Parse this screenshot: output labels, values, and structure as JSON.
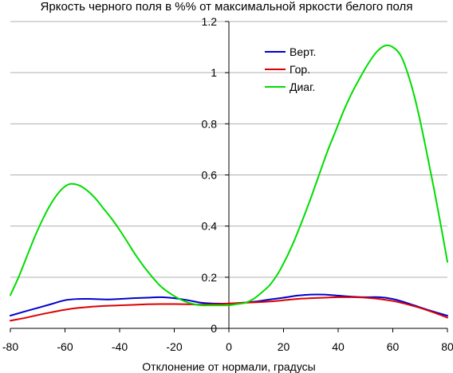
{
  "chart_data": {
    "type": "line",
    "title": "Яркость черного поля в %% от максимальной яркости белого поля",
    "xlabel": "Отклонение от нормали, градусы",
    "ylabel": "",
    "xlim": [
      -80,
      80
    ],
    "ylim": [
      0,
      1.2
    ],
    "x_ticks": [
      "-80",
      "-60",
      "-40",
      "-20",
      "0",
      "20",
      "40",
      "60",
      "80"
    ],
    "y_ticks": [
      "0",
      "0.2",
      "0.4",
      "0.6",
      "0.8",
      "1",
      "1.2"
    ],
    "grid": "horizontal",
    "legend_position": "top-right",
    "series": [
      {
        "name": "Верт.",
        "color": "#0000cc",
        "x": [
          -80,
          -75,
          -70,
          -65,
          -60,
          -55,
          -50,
          -45,
          -40,
          -35,
          -30,
          -25,
          -20,
          -15,
          -10,
          -5,
          0,
          5,
          10,
          15,
          20,
          25,
          30,
          35,
          40,
          45,
          50,
          55,
          60,
          65,
          70,
          75,
          80
        ],
        "y": [
          0.05,
          0.065,
          0.08,
          0.095,
          0.11,
          0.115,
          0.115,
          0.113,
          0.115,
          0.118,
          0.12,
          0.122,
          0.118,
          0.11,
          0.1,
          0.097,
          0.097,
          0.1,
          0.105,
          0.113,
          0.12,
          0.128,
          0.132,
          0.132,
          0.128,
          0.124,
          0.122,
          0.122,
          0.115,
          0.1,
          0.082,
          0.065,
          0.05
        ]
      },
      {
        "name": "Гор.",
        "color": "#dd0000",
        "x": [
          -80,
          -75,
          -70,
          -65,
          -60,
          -55,
          -50,
          -45,
          -40,
          -35,
          -30,
          -25,
          -20,
          -15,
          -10,
          -5,
          0,
          5,
          10,
          15,
          20,
          25,
          30,
          35,
          40,
          45,
          50,
          55,
          60,
          65,
          70,
          75,
          80
        ],
        "y": [
          0.03,
          0.04,
          0.052,
          0.063,
          0.073,
          0.08,
          0.085,
          0.088,
          0.09,
          0.092,
          0.094,
          0.095,
          0.095,
          0.094,
          0.093,
          0.094,
          0.097,
          0.1,
          0.102,
          0.105,
          0.11,
          0.115,
          0.118,
          0.12,
          0.122,
          0.122,
          0.12,
          0.115,
          0.107,
          0.095,
          0.08,
          0.062,
          0.042
        ]
      },
      {
        "name": "Диаг.",
        "color": "#00dd00",
        "x": [
          -80,
          -77,
          -74,
          -71,
          -68,
          -65,
          -62,
          -60,
          -58,
          -55,
          -52,
          -49,
          -46,
          -43,
          -40,
          -37,
          -34,
          -31,
          -28,
          -25,
          -22,
          -19,
          -16,
          -13,
          -10,
          -7,
          -4,
          -1,
          0,
          3,
          6,
          9,
          12,
          15,
          18,
          21,
          24,
          27,
          30,
          33,
          36,
          39,
          42,
          45,
          48,
          51,
          54,
          57,
          60,
          63,
          66,
          69,
          72,
          75,
          78,
          80
        ],
        "y": [
          0.13,
          0.2,
          0.28,
          0.36,
          0.43,
          0.49,
          0.535,
          0.555,
          0.565,
          0.56,
          0.54,
          0.51,
          0.47,
          0.43,
          0.385,
          0.335,
          0.285,
          0.24,
          0.2,
          0.165,
          0.14,
          0.12,
          0.105,
          0.095,
          0.09,
          0.09,
          0.09,
          0.09,
          0.09,
          0.095,
          0.1,
          0.115,
          0.14,
          0.17,
          0.215,
          0.275,
          0.345,
          0.425,
          0.51,
          0.6,
          0.69,
          0.77,
          0.85,
          0.92,
          0.98,
          1.035,
          1.08,
          1.105,
          1.1,
          1.065,
          0.98,
          0.86,
          0.71,
          0.55,
          0.38,
          0.26
        ]
      }
    ]
  }
}
